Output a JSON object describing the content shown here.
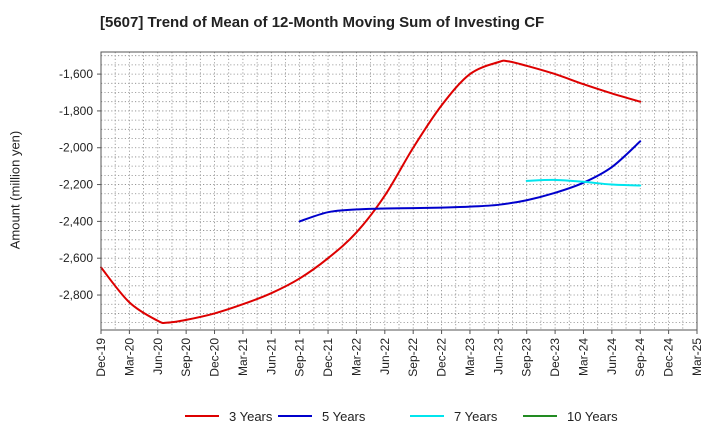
{
  "chart_data": {
    "type": "line",
    "title": "[5607]  Trend of Mean of 12-Month Moving Sum of Investing CF",
    "ylabel": "Amount (million yen)",
    "xlabel": "",
    "x_ticks": [
      "Dec-19",
      "Mar-20",
      "Jun-20",
      "Sep-20",
      "Dec-20",
      "Mar-21",
      "Jun-21",
      "Sep-21",
      "Dec-21",
      "Mar-22",
      "Jun-22",
      "Sep-22",
      "Dec-22",
      "Mar-23",
      "Jun-23",
      "Sep-23",
      "Dec-23",
      "Mar-24",
      "Jun-24",
      "Sep-24",
      "Dec-24",
      "Mar-25"
    ],
    "y_ticks": [
      -1600,
      -1800,
      -2000,
      -2200,
      -2400,
      -2600,
      -2800
    ],
    "y_tick_labels": [
      "-1,600",
      "-1,800",
      "-2,000",
      "-2,200",
      "-2,400",
      "-2,600",
      "-2,800"
    ],
    "ylim": [
      -2990,
      -1480
    ],
    "grid": true,
    "legend_position": "bottom",
    "series": [
      {
        "name": "3 Years",
        "color": "#dd0000",
        "x": [
          "Dec-19",
          "Mar-20",
          "Jun-20",
          "Jul-20",
          "Sep-20",
          "Dec-20",
          "Mar-21",
          "Jun-21",
          "Sep-21",
          "Dec-21",
          "Mar-22",
          "Jun-22",
          "Sep-22",
          "Dec-22",
          "Mar-23",
          "Jun-23",
          "Jul-23",
          "Sep-23",
          "Dec-23",
          "Mar-24",
          "Jun-24",
          "Sep-24"
        ],
        "values": [
          -2650,
          -2840,
          -2940,
          -2950,
          -2935,
          -2900,
          -2850,
          -2790,
          -2710,
          -2600,
          -2460,
          -2260,
          -2000,
          -1770,
          -1600,
          -1535,
          -1530,
          -1555,
          -1600,
          -1655,
          -1705,
          -1750
        ]
      },
      {
        "name": "5 Years",
        "color": "#0000cc",
        "x": [
          "Sep-21",
          "Dec-21",
          "Mar-22",
          "Jun-22",
          "Sep-22",
          "Dec-22",
          "Mar-23",
          "Jun-23",
          "Sep-23",
          "Dec-23",
          "Mar-24",
          "Jun-24",
          "Sep-24"
        ],
        "values": [
          -2400,
          -2350,
          -2335,
          -2330,
          -2328,
          -2325,
          -2320,
          -2310,
          -2285,
          -2245,
          -2190,
          -2105,
          -1965
        ]
      },
      {
        "name": "7 Years",
        "color": "#00e5ee",
        "x": [
          "Sep-23",
          "Dec-23",
          "Mar-24",
          "Jun-24",
          "Sep-24"
        ],
        "values": [
          -2180,
          -2175,
          -2185,
          -2200,
          -2205
        ]
      },
      {
        "name": "10 Years",
        "color": "#228b22",
        "x": [],
        "values": []
      }
    ]
  }
}
